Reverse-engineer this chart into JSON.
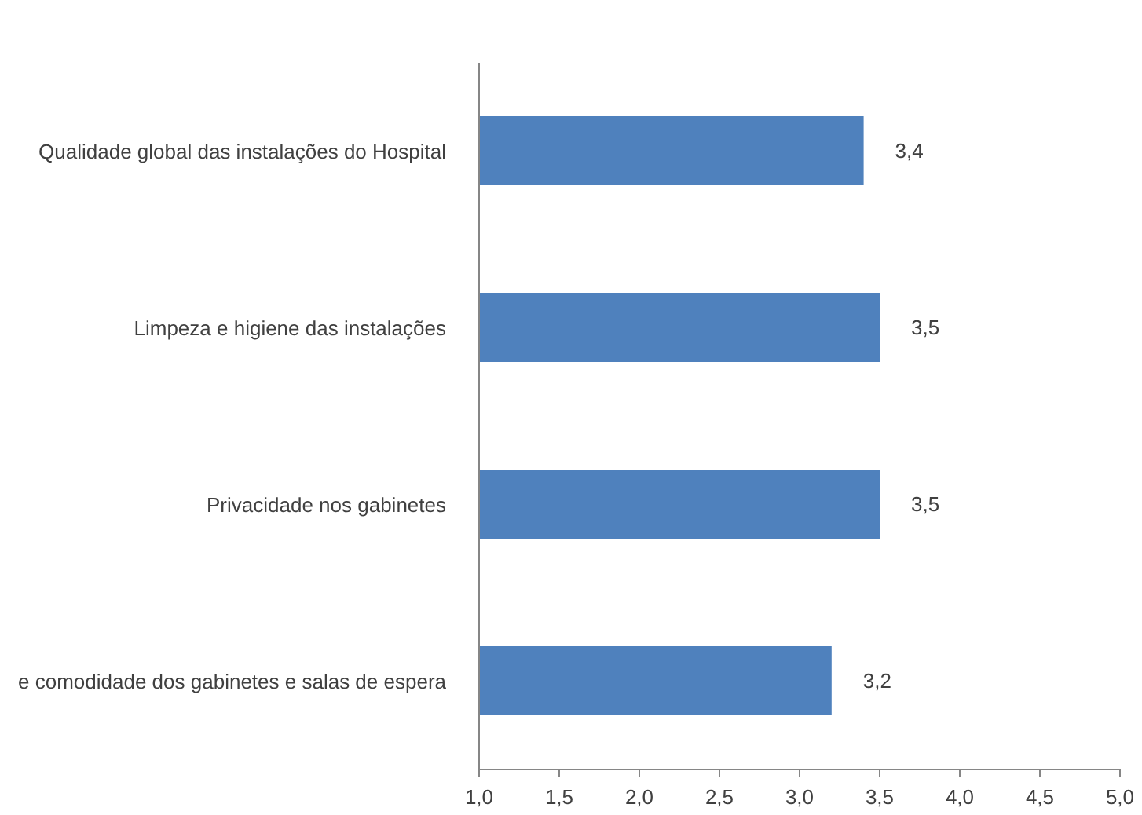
{
  "chart_data": {
    "type": "bar",
    "orientation": "horizontal",
    "categories": [
      "Qualidade global das instalações do Hospital",
      "Limpeza e higiene das instalações",
      "Privacidade nos gabinetes",
      "e comodidade dos gabinetes e salas de espera"
    ],
    "values": [
      3.4,
      3.5,
      3.5,
      3.2
    ],
    "color": "#4f81bd",
    "value_labels": [
      "3,4",
      "3,5",
      "3,5",
      "3,2"
    ],
    "xlim": [
      1,
      5
    ],
    "xticks": [
      {
        "value": 1,
        "label": "1,0"
      },
      {
        "value": 1.5,
        "label": "1,5"
      },
      {
        "value": 2,
        "label": "2,0"
      },
      {
        "value": 2.5,
        "label": "2,5"
      },
      {
        "value": 3,
        "label": "3,0"
      },
      {
        "value": 3.5,
        "label": "3,5"
      },
      {
        "value": 4,
        "label": "4,0"
      },
      {
        "value": 4.5,
        "label": "4,5"
      },
      {
        "value": 5,
        "label": "5,0"
      }
    ]
  }
}
